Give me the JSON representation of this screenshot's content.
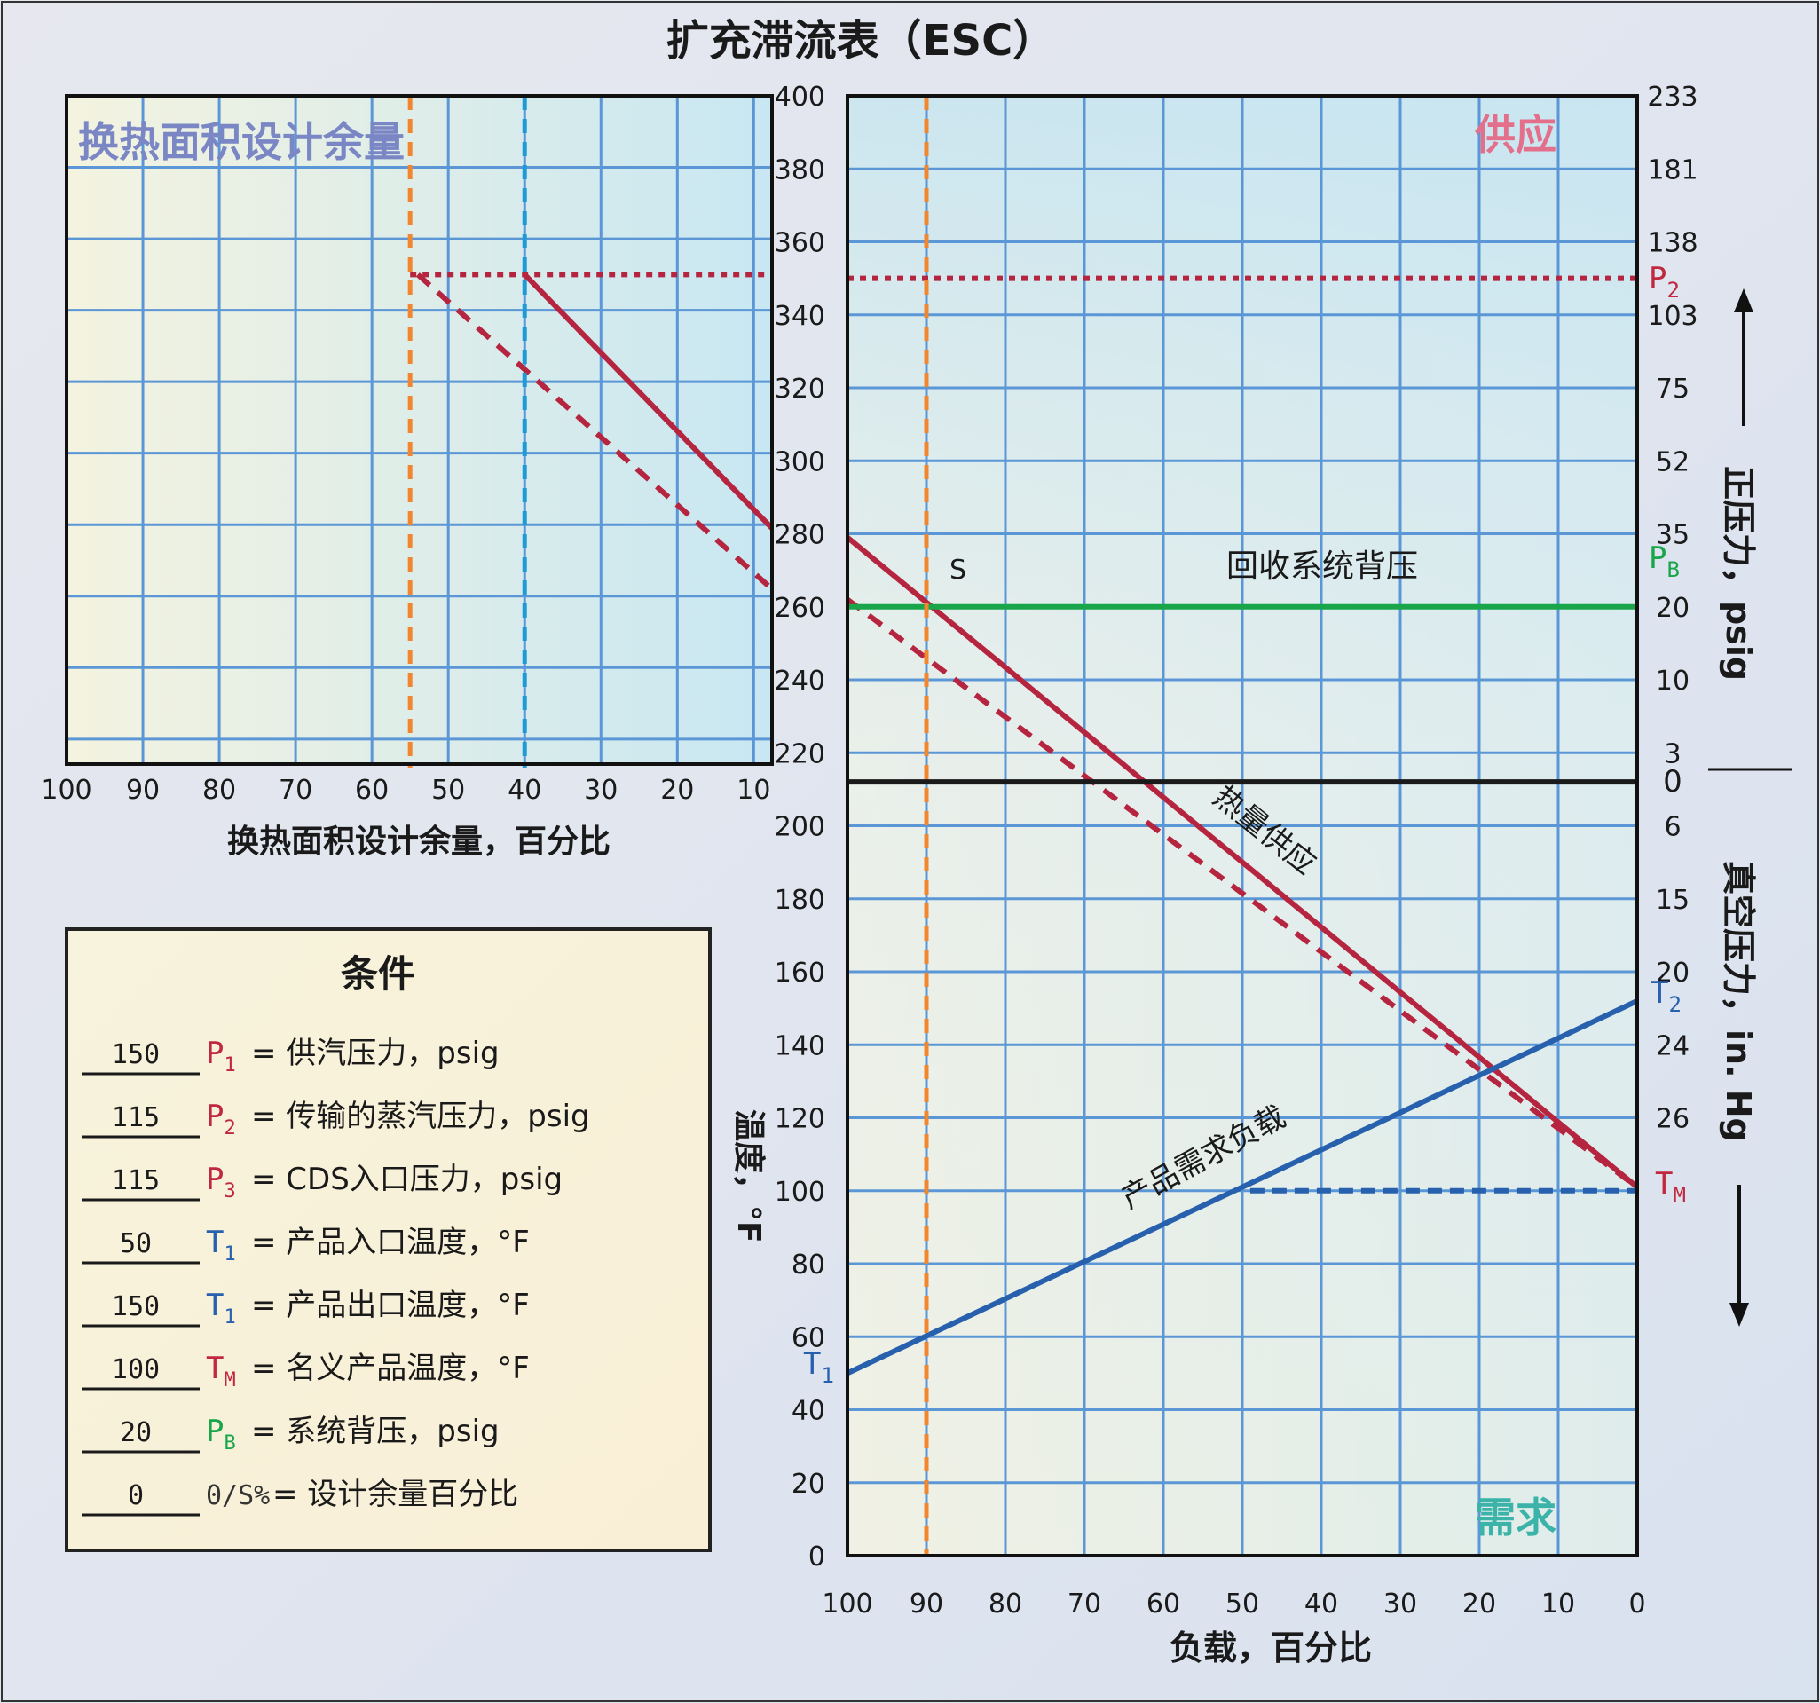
{
  "chart_data": [
    {
      "type": "line",
      "panel": "left",
      "title": "换热面积设计余量",
      "xlabel": "换热面积设计余量，百分比",
      "x_ticks": [
        "100",
        "90",
        "80",
        "70",
        "60",
        "50",
        "40",
        "30",
        "20",
        "10"
      ],
      "xlim": [
        100,
        10
      ],
      "ylabel": "",
      "y_ticks": [
        "400",
        "380",
        "360",
        "340",
        "320",
        "300",
        "280",
        "260",
        "240",
        "220"
      ],
      "ylim": [
        213,
        400
      ],
      "grid": true,
      "series": [
        {
          "style": "dotted-red",
          "color": "#b5253f",
          "points": [
            [
              55,
              350
            ],
            [
              0,
              350
            ]
          ]
        },
        {
          "style": "solid-red",
          "color": "#b5253f",
          "points": [
            [
              40,
              350
            ],
            [
              0,
              279
            ]
          ]
        },
        {
          "style": "dashed-red",
          "color": "#b5253f",
          "points": [
            [
              54,
              350
            ],
            [
              0,
              262
            ]
          ]
        },
        {
          "style": "dashed-orange-vertical",
          "color": "#f2862e",
          "x": 55
        },
        {
          "style": "dashed-blue-vertical",
          "color": "#1e9bd7",
          "x": 40
        }
      ]
    },
    {
      "type": "line",
      "panel": "right",
      "corner_labels": {
        "top": "供应",
        "bottom": "需求"
      },
      "xlabel": "负载，百分比",
      "x_ticks": [
        "100",
        "90",
        "80",
        "70",
        "60",
        "50",
        "40",
        "30",
        "20",
        "10",
        "0"
      ],
      "xlim": [
        100,
        0
      ],
      "ylabel": "温度，°F",
      "y_ticks_upper": [
        "400",
        "380",
        "360",
        "340",
        "320",
        "300",
        "280",
        "260",
        "240",
        "220"
      ],
      "y_ticks_lower": [
        "200",
        "180",
        "160",
        "140",
        "120",
        "100",
        "80",
        "60",
        "40",
        "20",
        "0"
      ],
      "ylim": [
        0,
        400
      ],
      "grid": true,
      "right_axis_upper_label": "正压力，psig",
      "right_axis_upper_ticks": [
        "233",
        "181",
        "138",
        "103",
        "75",
        "52",
        "35",
        "20",
        "10",
        "3",
        "0"
      ],
      "right_axis_lower_label": "真空压力，in. Hg",
      "right_axis_lower_ticks": [
        "6",
        "15",
        "20",
        "24",
        "26"
      ],
      "series": [
        {
          "name": "热量供应",
          "style": "solid-red",
          "color": "#b5253f",
          "points": [
            [
              100,
              279
            ],
            [
              0,
              101
            ]
          ]
        },
        {
          "style": "dashed-red",
          "color": "#b5253f",
          "points": [
            [
              100,
              262
            ],
            [
              0,
              101
            ]
          ]
        },
        {
          "name": "产品需求负载",
          "style": "solid-blue",
          "color": "#2760ad",
          "points": [
            [
              100,
              50
            ],
            [
              0,
              152
            ]
          ]
        },
        {
          "name": "回收系统背压",
          "style": "solid-green",
          "color": "#19a54a",
          "points": [
            [
              100,
              260
            ],
            [
              0,
              260
            ]
          ]
        },
        {
          "style": "solid-black",
          "color": "#1a1a1a",
          "points": [
            [
              100,
              212
            ],
            [
              0,
              212
            ]
          ]
        },
        {
          "style": "dotted-red",
          "color": "#b5253f",
          "points": [
            [
              100,
              350
            ],
            [
              0,
              350
            ]
          ]
        },
        {
          "style": "dashed-blue",
          "color": "#2760ad",
          "points": [
            [
              49,
              100
            ],
            [
              0,
              100
            ]
          ]
        },
        {
          "style": "dashed-orange-vertical",
          "color": "#f2862e",
          "x": 90
        }
      ],
      "annotations": {
        "s_point": "S",
        "p2_sub": "2",
        "pb_sub": "B",
        "t2_sub": "2",
        "tm_sub": "M",
        "t1_sub": "1"
      }
    }
  ],
  "page": {
    "title": "扩充滞流表（ESC）"
  },
  "conditions": {
    "heading": "条件",
    "rows": [
      {
        "value": "150",
        "sym": "P",
        "sub": "1",
        "color": "#c0283f",
        "desc": "= 供汽压力，psig"
      },
      {
        "value": "115",
        "sym": "P",
        "sub": "2",
        "color": "#c0283f",
        "desc": "= 传输的蒸汽压力，psig"
      },
      {
        "value": "115",
        "sym": "P",
        "sub": "3",
        "color": "#c0283f",
        "desc": "= CDS入口压力，psig"
      },
      {
        "value": "50",
        "sym": "T",
        "sub": "1",
        "color": "#2760ad",
        "desc": "= 产品入口温度，°F"
      },
      {
        "value": "150",
        "sym": "T",
        "sub": "1",
        "color": "#2760ad",
        "desc": "= 产品出口温度，°F"
      },
      {
        "value": "100",
        "sym": "T",
        "sub": "M",
        "color": "#c0283f",
        "desc": "= 名义产品温度，°F"
      },
      {
        "value": "20",
        "sym": "P",
        "sub": "B",
        "color": "#19a54a",
        "desc": "= 系统背压，psig"
      },
      {
        "value": "0",
        "sym": "0/S%",
        "sub": "",
        "color": "#333333",
        "desc": "= 设计余量百分比"
      }
    ]
  },
  "side_labels": {
    "p2": "P",
    "pb": "P",
    "t2": "T",
    "tm": "T",
    "t1": "T",
    "up_arrow": "↑",
    "down_arrow": "↓"
  }
}
